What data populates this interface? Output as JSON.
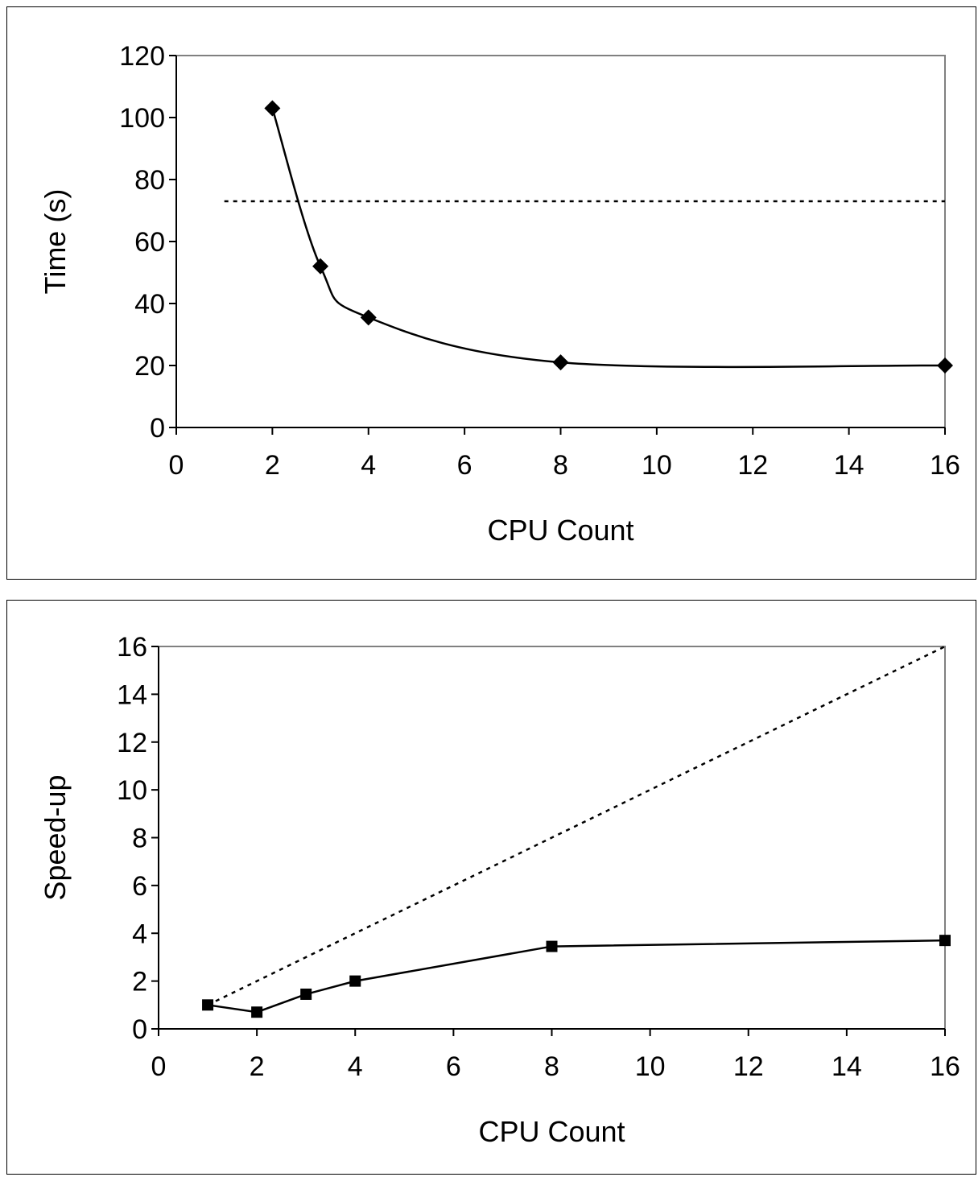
{
  "chart_data": [
    {
      "type": "line",
      "xlabel": "CPU Count",
      "ylabel": "Time (s)",
      "xlim": [
        0,
        16
      ],
      "ylim": [
        0,
        120
      ],
      "xticks": [
        0,
        2,
        4,
        6,
        8,
        10,
        12,
        14,
        16
      ],
      "yticks": [
        0,
        20,
        40,
        60,
        80,
        100,
        120
      ],
      "grid": false,
      "legend": "none",
      "marker": "diamond",
      "series": [
        {
          "x": [
            2,
            3,
            4,
            8,
            16
          ],
          "values": [
            103,
            52,
            35.5,
            21,
            20
          ],
          "style": "solid",
          "smooth": true
        },
        {
          "x": [
            1,
            16
          ],
          "values": [
            73,
            73
          ],
          "style": "dotted"
        }
      ]
    },
    {
      "type": "line",
      "xlabel": "CPU Count",
      "ylabel": "Speed-up",
      "xlim": [
        0,
        16
      ],
      "ylim": [
        0,
        16
      ],
      "xticks": [
        0,
        2,
        4,
        6,
        8,
        10,
        12,
        14,
        16
      ],
      "yticks": [
        0,
        2,
        4,
        6,
        8,
        10,
        12,
        14,
        16
      ],
      "grid": false,
      "legend": "none",
      "marker": "square",
      "series": [
        {
          "x": [
            1,
            2,
            3,
            4,
            8,
            16
          ],
          "values": [
            1,
            0.7,
            1.45,
            2,
            3.45,
            3.7
          ],
          "style": "solid"
        },
        {
          "x": [
            1,
            16
          ],
          "values": [
            1,
            16
          ],
          "style": "dotted"
        }
      ]
    }
  ]
}
